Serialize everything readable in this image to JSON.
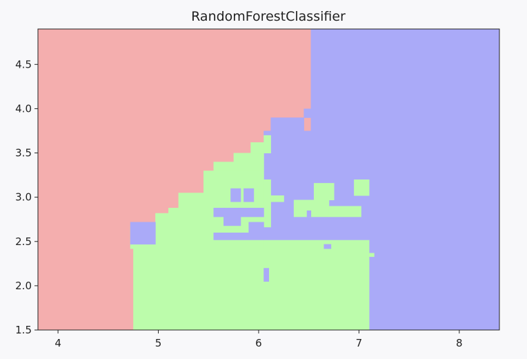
{
  "chart_data": {
    "type": "heatmap",
    "title": "RandomForestClassifier",
    "xlabel": "",
    "ylabel": "",
    "xlim": [
      3.8,
      8.4
    ],
    "ylim": [
      1.5,
      4.9
    ],
    "x_ticks": [
      4,
      5,
      6,
      7,
      8
    ],
    "x_tick_labels": [
      "4",
      "5",
      "6",
      "7",
      "8"
    ],
    "y_ticks": [
      1.5,
      2.0,
      2.5,
      3.0,
      3.5,
      4.0,
      4.5
    ],
    "y_tick_labels": [
      "1.5",
      "2.0",
      "2.5",
      "3.0",
      "3.5",
      "4.0",
      "4.5"
    ],
    "grid": false,
    "classes": [
      {
        "id": 0,
        "color": "#f4aeae"
      },
      {
        "id": 1,
        "color": "#bcfcab"
      },
      {
        "id": 2,
        "color": "#aaaaf8"
      }
    ],
    "regions": [
      {
        "class": 0,
        "x": [
          3.8,
          6.52
        ],
        "y": [
          1.5,
          4.9
        ]
      },
      {
        "class": 2,
        "x": [
          6.52,
          8.4
        ],
        "y": [
          1.5,
          4.9
        ]
      },
      {
        "class": 2,
        "x": [
          6.45,
          6.52
        ],
        "y": [
          3.9,
          4.0
        ]
      },
      {
        "class": 2,
        "x": [
          6.12,
          6.45
        ],
        "y": [
          3.75,
          3.9
        ]
      },
      {
        "class": 2,
        "x": [
          6.05,
          6.52
        ],
        "y": [
          1.5,
          3.75
        ]
      },
      {
        "class": 1,
        "x": [
          4.75,
          7.1
        ],
        "y": [
          1.5,
          2.42
        ]
      },
      {
        "class": 1,
        "x": [
          7.1,
          7.15
        ],
        "y": [
          2.33,
          2.37
        ]
      },
      {
        "class": 1,
        "x": [
          4.72,
          6.05
        ],
        "y": [
          2.42,
          2.68
        ]
      },
      {
        "class": 1,
        "x": [
          4.97,
          6.05
        ],
        "y": [
          2.68,
          2.82
        ]
      },
      {
        "class": 1,
        "x": [
          5.1,
          6.05
        ],
        "y": [
          2.82,
          2.88
        ]
      },
      {
        "class": 1,
        "x": [
          5.2,
          6.05
        ],
        "y": [
          2.88,
          3.05
        ]
      },
      {
        "class": 1,
        "x": [
          5.45,
          6.05
        ],
        "y": [
          3.05,
          3.3
        ]
      },
      {
        "class": 1,
        "x": [
          5.55,
          6.05
        ],
        "y": [
          3.3,
          3.4
        ]
      },
      {
        "class": 1,
        "x": [
          5.75,
          6.05
        ],
        "y": [
          3.4,
          3.5
        ]
      },
      {
        "class": 1,
        "x": [
          5.92,
          6.05
        ],
        "y": [
          3.5,
          3.62
        ]
      },
      {
        "class": 1,
        "x": [
          6.05,
          6.12
        ],
        "y": [
          3.5,
          3.7
        ]
      },
      {
        "class": 1,
        "x": [
          6.05,
          6.12
        ],
        "y": [
          2.5,
          3.2
        ]
      },
      {
        "class": 1,
        "x": [
          6.12,
          6.25
        ],
        "y": [
          2.95,
          3.02
        ]
      },
      {
        "class": 1,
        "x": [
          6.05,
          7.1
        ],
        "y": [
          2.42,
          2.52
        ]
      },
      {
        "class": 1,
        "x": [
          6.35,
          6.7
        ],
        "y": [
          2.78,
          2.97
        ]
      },
      {
        "class": 1,
        "x": [
          6.55,
          6.75
        ],
        "y": [
          2.97,
          3.16
        ]
      },
      {
        "class": 1,
        "x": [
          6.7,
          7.02
        ],
        "y": [
          2.78,
          2.9
        ]
      },
      {
        "class": 1,
        "x": [
          6.95,
          7.1
        ],
        "y": [
          3.02,
          3.2
        ]
      },
      {
        "class": 2,
        "x": [
          4.72,
          4.97
        ],
        "y": [
          2.47,
          2.72
        ]
      },
      {
        "class": 2,
        "x": [
          5.55,
          5.66
        ],
        "y": [
          2.78,
          2.88
        ]
      },
      {
        "class": 2,
        "x": [
          5.65,
          5.82
        ],
        "y": [
          2.68,
          2.88
        ]
      },
      {
        "class": 2,
        "x": [
          5.72,
          5.82
        ],
        "y": [
          2.95,
          3.1
        ]
      },
      {
        "class": 2,
        "x": [
          5.85,
          5.95
        ],
        "y": [
          2.95,
          3.1
        ]
      },
      {
        "class": 2,
        "x": [
          5.75,
          6.05
        ],
        "y": [
          2.78,
          2.88
        ]
      },
      {
        "class": 2,
        "x": [
          5.55,
          6.05
        ],
        "y": [
          2.52,
          2.6
        ]
      },
      {
        "class": 2,
        "x": [
          5.9,
          6.05
        ],
        "y": [
          2.6,
          2.72
        ]
      },
      {
        "class": 2,
        "x": [
          6.05,
          7.1
        ],
        "y": [
          2.52,
          2.66
        ]
      },
      {
        "class": 2,
        "x": [
          6.65,
          6.72
        ],
        "y": [
          2.42,
          2.47
        ]
      },
      {
        "class": 2,
        "x": [
          6.05,
          6.1
        ],
        "y": [
          2.05,
          2.2
        ]
      },
      {
        "class": 2,
        "x": [
          6.48,
          6.52
        ],
        "y": [
          2.78,
          2.85
        ]
      }
    ]
  }
}
